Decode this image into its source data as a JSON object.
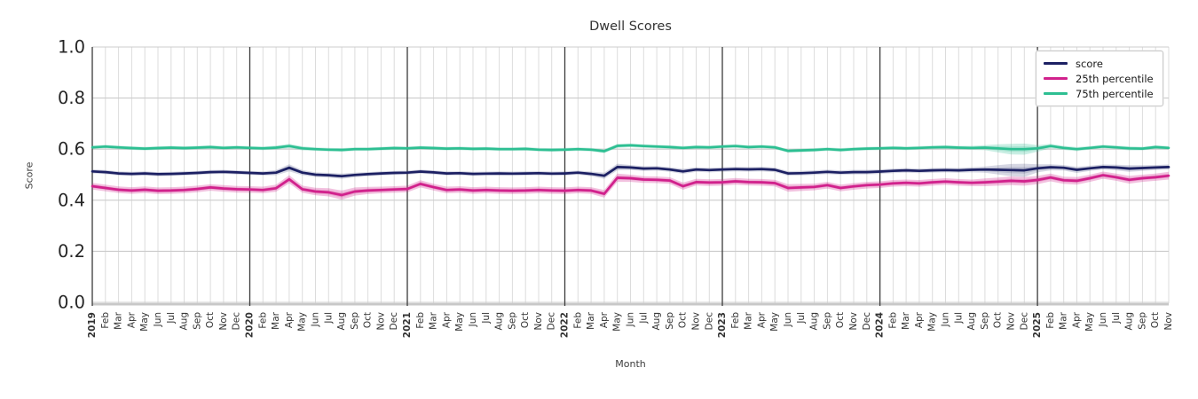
{
  "title": "Dwell Scores",
  "chart_data": {
    "type": "line",
    "title": "Dwell Scores",
    "xlabel": "Month",
    "ylabel": "Score",
    "ylim": [
      0.0,
      1.0
    ],
    "grid": true,
    "legend_position": "upper right",
    "yticks": [
      0.0,
      0.2,
      0.4,
      0.6,
      0.8,
      1.0
    ],
    "ytick_labels": [
      "0.0",
      "0.2",
      "0.4",
      "0.6",
      "0.8",
      "1.0"
    ],
    "x_tick_labels": [
      "2019",
      "Feb",
      "Mar",
      "Apr",
      "May",
      "Jun",
      "Jul",
      "Aug",
      "Sep",
      "Oct",
      "Nov",
      "Dec",
      "2020",
      "Feb",
      "Mar",
      "Apr",
      "May",
      "Jun",
      "Jul",
      "Aug",
      "Sep",
      "Oct",
      "Nov",
      "Dec",
      "2021",
      "Feb",
      "Mar",
      "Apr",
      "May",
      "Jun",
      "Jul",
      "Aug",
      "Sep",
      "Oct",
      "Nov",
      "Dec",
      "2022",
      "Feb",
      "Mar",
      "Apr",
      "May",
      "Jun",
      "Jul",
      "Aug",
      "Sep",
      "Oct",
      "Nov",
      "Dec",
      "2023",
      "Feb",
      "Mar",
      "Apr",
      "May",
      "Jun",
      "Jul",
      "Aug",
      "Sep",
      "Oct",
      "Nov",
      "Dec",
      "2024",
      "Feb",
      "Mar",
      "Apr",
      "May",
      "Jun",
      "Jul",
      "Aug",
      "Sep",
      "Oct",
      "Nov",
      "Dec",
      "2025",
      "Feb",
      "Mar",
      "Apr",
      "May",
      "Jun",
      "Jul",
      "Aug",
      "Sep",
      "Oct",
      "Nov"
    ],
    "year_tick_indices": [
      0,
      12,
      24,
      36,
      48,
      60,
      72
    ],
    "series": [
      {
        "name": "score",
        "color": "#1c2063",
        "band_opacity": 0.18,
        "values": [
          0.513,
          0.51,
          0.505,
          0.503,
          0.505,
          0.502,
          0.503,
          0.505,
          0.507,
          0.51,
          0.511,
          0.509,
          0.507,
          0.505,
          0.508,
          0.527,
          0.508,
          0.5,
          0.498,
          0.494,
          0.499,
          0.502,
          0.505,
          0.507,
          0.508,
          0.512,
          0.509,
          0.505,
          0.506,
          0.503,
          0.504,
          0.505,
          0.504,
          0.505,
          0.506,
          0.504,
          0.505,
          0.508,
          0.503,
          0.496,
          0.53,
          0.528,
          0.524,
          0.525,
          0.52,
          0.513,
          0.52,
          0.518,
          0.52,
          0.522,
          0.521,
          0.522,
          0.519,
          0.505,
          0.506,
          0.508,
          0.511,
          0.508,
          0.51,
          0.51,
          0.512,
          0.515,
          0.517,
          0.515,
          0.517,
          0.518,
          0.517,
          0.519,
          0.52,
          0.519,
          0.518,
          0.517,
          0.525,
          0.529,
          0.527,
          0.519,
          0.525,
          0.53,
          0.528,
          0.524,
          0.526,
          0.528,
          0.53
        ],
        "band": [
          0.008,
          0.008,
          0.008,
          0.008,
          0.008,
          0.008,
          0.008,
          0.008,
          0.008,
          0.008,
          0.008,
          0.008,
          0.008,
          0.008,
          0.01,
          0.014,
          0.01,
          0.009,
          0.009,
          0.01,
          0.009,
          0.008,
          0.008,
          0.008,
          0.008,
          0.008,
          0.008,
          0.008,
          0.008,
          0.008,
          0.008,
          0.008,
          0.008,
          0.008,
          0.008,
          0.008,
          0.008,
          0.008,
          0.009,
          0.012,
          0.013,
          0.01,
          0.009,
          0.009,
          0.009,
          0.01,
          0.009,
          0.009,
          0.009,
          0.009,
          0.009,
          0.009,
          0.009,
          0.009,
          0.009,
          0.009,
          0.009,
          0.009,
          0.009,
          0.009,
          0.009,
          0.009,
          0.009,
          0.009,
          0.009,
          0.009,
          0.009,
          0.01,
          0.012,
          0.018,
          0.024,
          0.026,
          0.016,
          0.012,
          0.011,
          0.012,
          0.01,
          0.01,
          0.011,
          0.013,
          0.011,
          0.01,
          0.01
        ]
      },
      {
        "name": "25th percentile",
        "color": "#d1218c",
        "band_opacity": 0.28,
        "values": [
          0.455,
          0.448,
          0.441,
          0.438,
          0.441,
          0.437,
          0.438,
          0.44,
          0.444,
          0.45,
          0.446,
          0.443,
          0.442,
          0.44,
          0.447,
          0.482,
          0.443,
          0.434,
          0.431,
          0.42,
          0.434,
          0.438,
          0.44,
          0.442,
          0.444,
          0.464,
          0.451,
          0.44,
          0.442,
          0.438,
          0.44,
          0.438,
          0.437,
          0.438,
          0.44,
          0.438,
          0.437,
          0.44,
          0.438,
          0.425,
          0.488,
          0.486,
          0.481,
          0.48,
          0.477,
          0.455,
          0.471,
          0.469,
          0.47,
          0.474,
          0.471,
          0.47,
          0.467,
          0.448,
          0.45,
          0.452,
          0.459,
          0.448,
          0.454,
          0.459,
          0.461,
          0.466,
          0.468,
          0.466,
          0.47,
          0.473,
          0.47,
          0.468,
          0.47,
          0.473,
          0.476,
          0.474,
          0.479,
          0.489,
          0.478,
          0.476,
          0.486,
          0.498,
          0.49,
          0.48,
          0.486,
          0.49,
          0.496
        ],
        "band": [
          0.013,
          0.013,
          0.013,
          0.013,
          0.013,
          0.013,
          0.013,
          0.013,
          0.013,
          0.013,
          0.013,
          0.013,
          0.013,
          0.013,
          0.014,
          0.016,
          0.014,
          0.015,
          0.016,
          0.018,
          0.016,
          0.014,
          0.013,
          0.013,
          0.013,
          0.014,
          0.013,
          0.013,
          0.013,
          0.013,
          0.013,
          0.013,
          0.013,
          0.013,
          0.013,
          0.013,
          0.013,
          0.013,
          0.013,
          0.015,
          0.016,
          0.014,
          0.013,
          0.013,
          0.013,
          0.014,
          0.013,
          0.013,
          0.013,
          0.013,
          0.013,
          0.013,
          0.013,
          0.015,
          0.014,
          0.013,
          0.013,
          0.013,
          0.013,
          0.013,
          0.013,
          0.013,
          0.013,
          0.013,
          0.013,
          0.013,
          0.013,
          0.013,
          0.015,
          0.016,
          0.017,
          0.017,
          0.016,
          0.015,
          0.014,
          0.015,
          0.014,
          0.014,
          0.014,
          0.015,
          0.014,
          0.014,
          0.015
        ]
      },
      {
        "name": "75th percentile",
        "color": "#2dbf92",
        "band_opacity": 0.26,
        "values": [
          0.607,
          0.61,
          0.607,
          0.604,
          0.602,
          0.604,
          0.606,
          0.604,
          0.606,
          0.608,
          0.605,
          0.607,
          0.605,
          0.603,
          0.606,
          0.612,
          0.603,
          0.6,
          0.598,
          0.597,
          0.6,
          0.6,
          0.602,
          0.604,
          0.603,
          0.606,
          0.604,
          0.602,
          0.603,
          0.601,
          0.602,
          0.6,
          0.6,
          0.601,
          0.598,
          0.597,
          0.598,
          0.6,
          0.598,
          0.592,
          0.613,
          0.615,
          0.612,
          0.61,
          0.608,
          0.605,
          0.608,
          0.607,
          0.61,
          0.612,
          0.608,
          0.61,
          0.607,
          0.593,
          0.595,
          0.597,
          0.6,
          0.597,
          0.6,
          0.602,
          0.603,
          0.605,
          0.603,
          0.605,
          0.607,
          0.608,
          0.606,
          0.605,
          0.606,
          0.603,
          0.6,
          0.6,
          0.603,
          0.612,
          0.605,
          0.6,
          0.605,
          0.61,
          0.607,
          0.603,
          0.602,
          0.608,
          0.605
        ],
        "band": [
          0.007,
          0.007,
          0.007,
          0.007,
          0.007,
          0.007,
          0.007,
          0.007,
          0.007,
          0.007,
          0.007,
          0.007,
          0.007,
          0.007,
          0.008,
          0.009,
          0.008,
          0.007,
          0.007,
          0.007,
          0.007,
          0.007,
          0.007,
          0.007,
          0.007,
          0.007,
          0.007,
          0.007,
          0.007,
          0.007,
          0.007,
          0.007,
          0.007,
          0.007,
          0.007,
          0.007,
          0.007,
          0.007,
          0.007,
          0.008,
          0.008,
          0.007,
          0.007,
          0.007,
          0.007,
          0.007,
          0.007,
          0.007,
          0.007,
          0.007,
          0.007,
          0.007,
          0.007,
          0.007,
          0.007,
          0.007,
          0.007,
          0.007,
          0.007,
          0.007,
          0.007,
          0.007,
          0.007,
          0.007,
          0.007,
          0.007,
          0.007,
          0.008,
          0.01,
          0.016,
          0.021,
          0.022,
          0.013,
          0.009,
          0.008,
          0.008,
          0.007,
          0.007,
          0.007,
          0.008,
          0.007,
          0.007,
          0.007
        ]
      }
    ],
    "style_colors": {
      "month_grid": "#dcdcdc",
      "value_grid": "#cccccc",
      "year_line": "#3a3a3a",
      "bottom_spine": "#c8c8c8",
      "tick_text": "#333333",
      "ytick_text": "#262626"
    }
  }
}
